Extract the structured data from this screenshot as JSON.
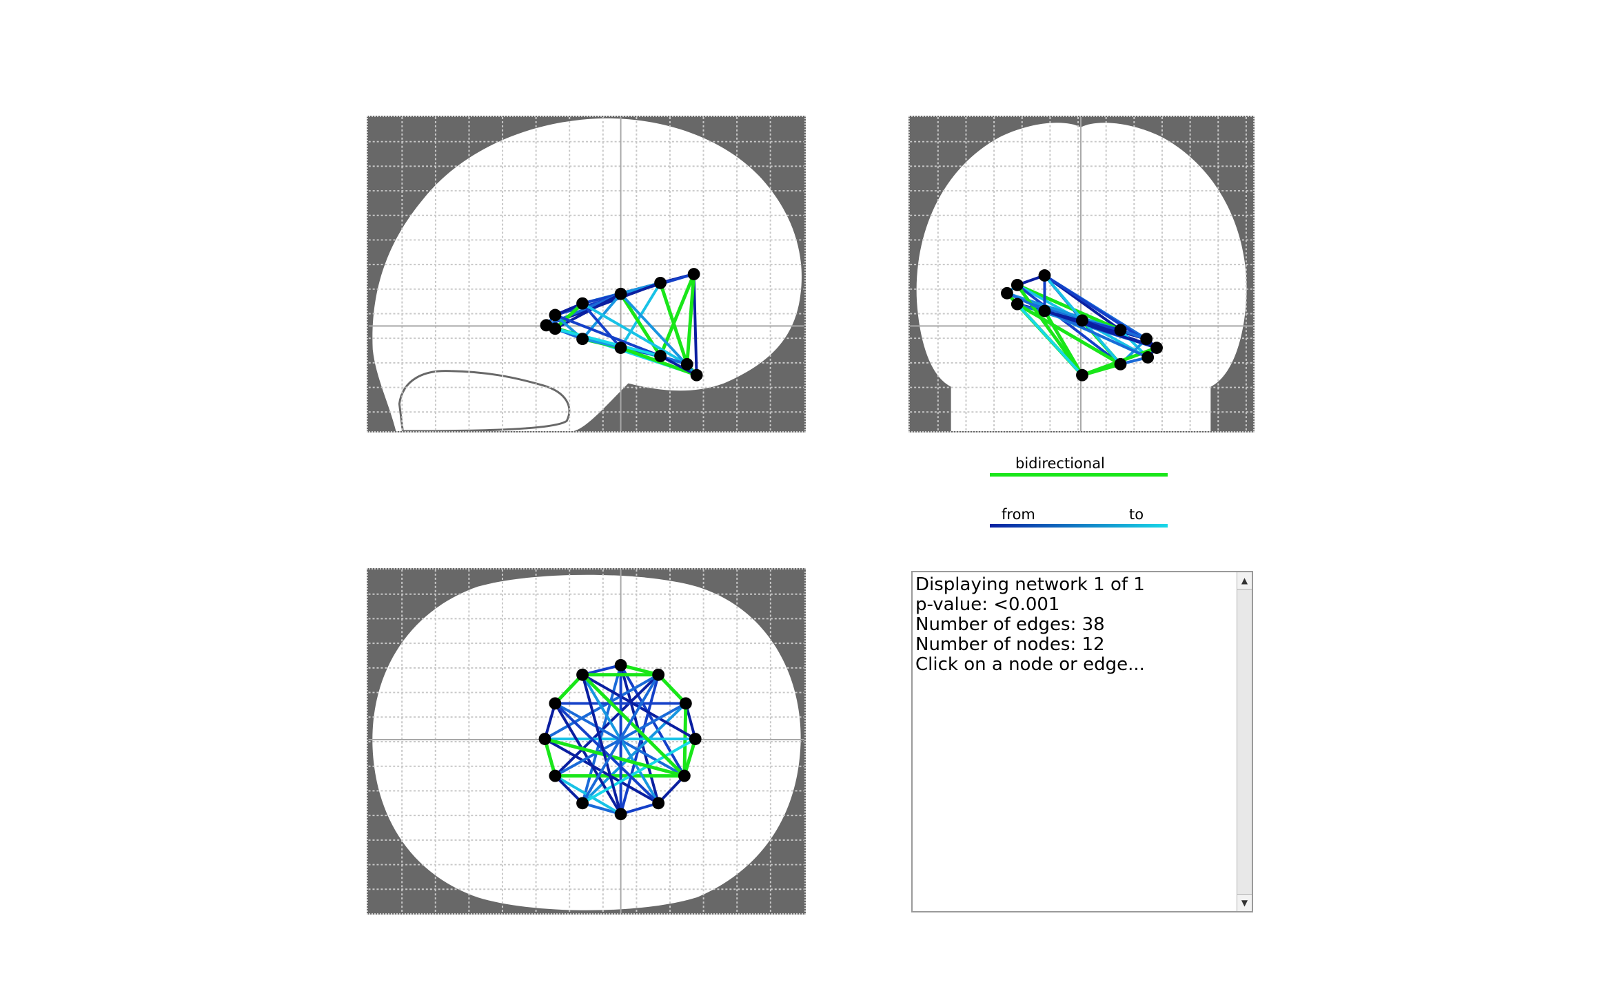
{
  "views": {
    "sagittal": "sagittal",
    "coronal": "coronal",
    "axial": "axial"
  },
  "legend": {
    "bidirectional_label": "bidirectional",
    "from_label": "from",
    "to_label": "to",
    "bidirectional_color": "#19e619",
    "from_color": "#0a1fa0",
    "to_color": "#18d8e8"
  },
  "info": {
    "lines": [
      "Displaying network 1 of 1",
      "p-value: <0.001",
      "Number of edges: 38",
      "Number of nodes: 12",
      "Click on a node or edge..."
    ]
  },
  "colors": {
    "background_mask": "#686868",
    "brain": "#ffffff",
    "grid": "#c8c8c8",
    "crosshair": "#a8a8a8",
    "node": "#000000"
  },
  "icons": {
    "scroll_up": "scroll-up-arrow-icon",
    "scroll_down": "scroll-down-arrow-icon"
  }
}
